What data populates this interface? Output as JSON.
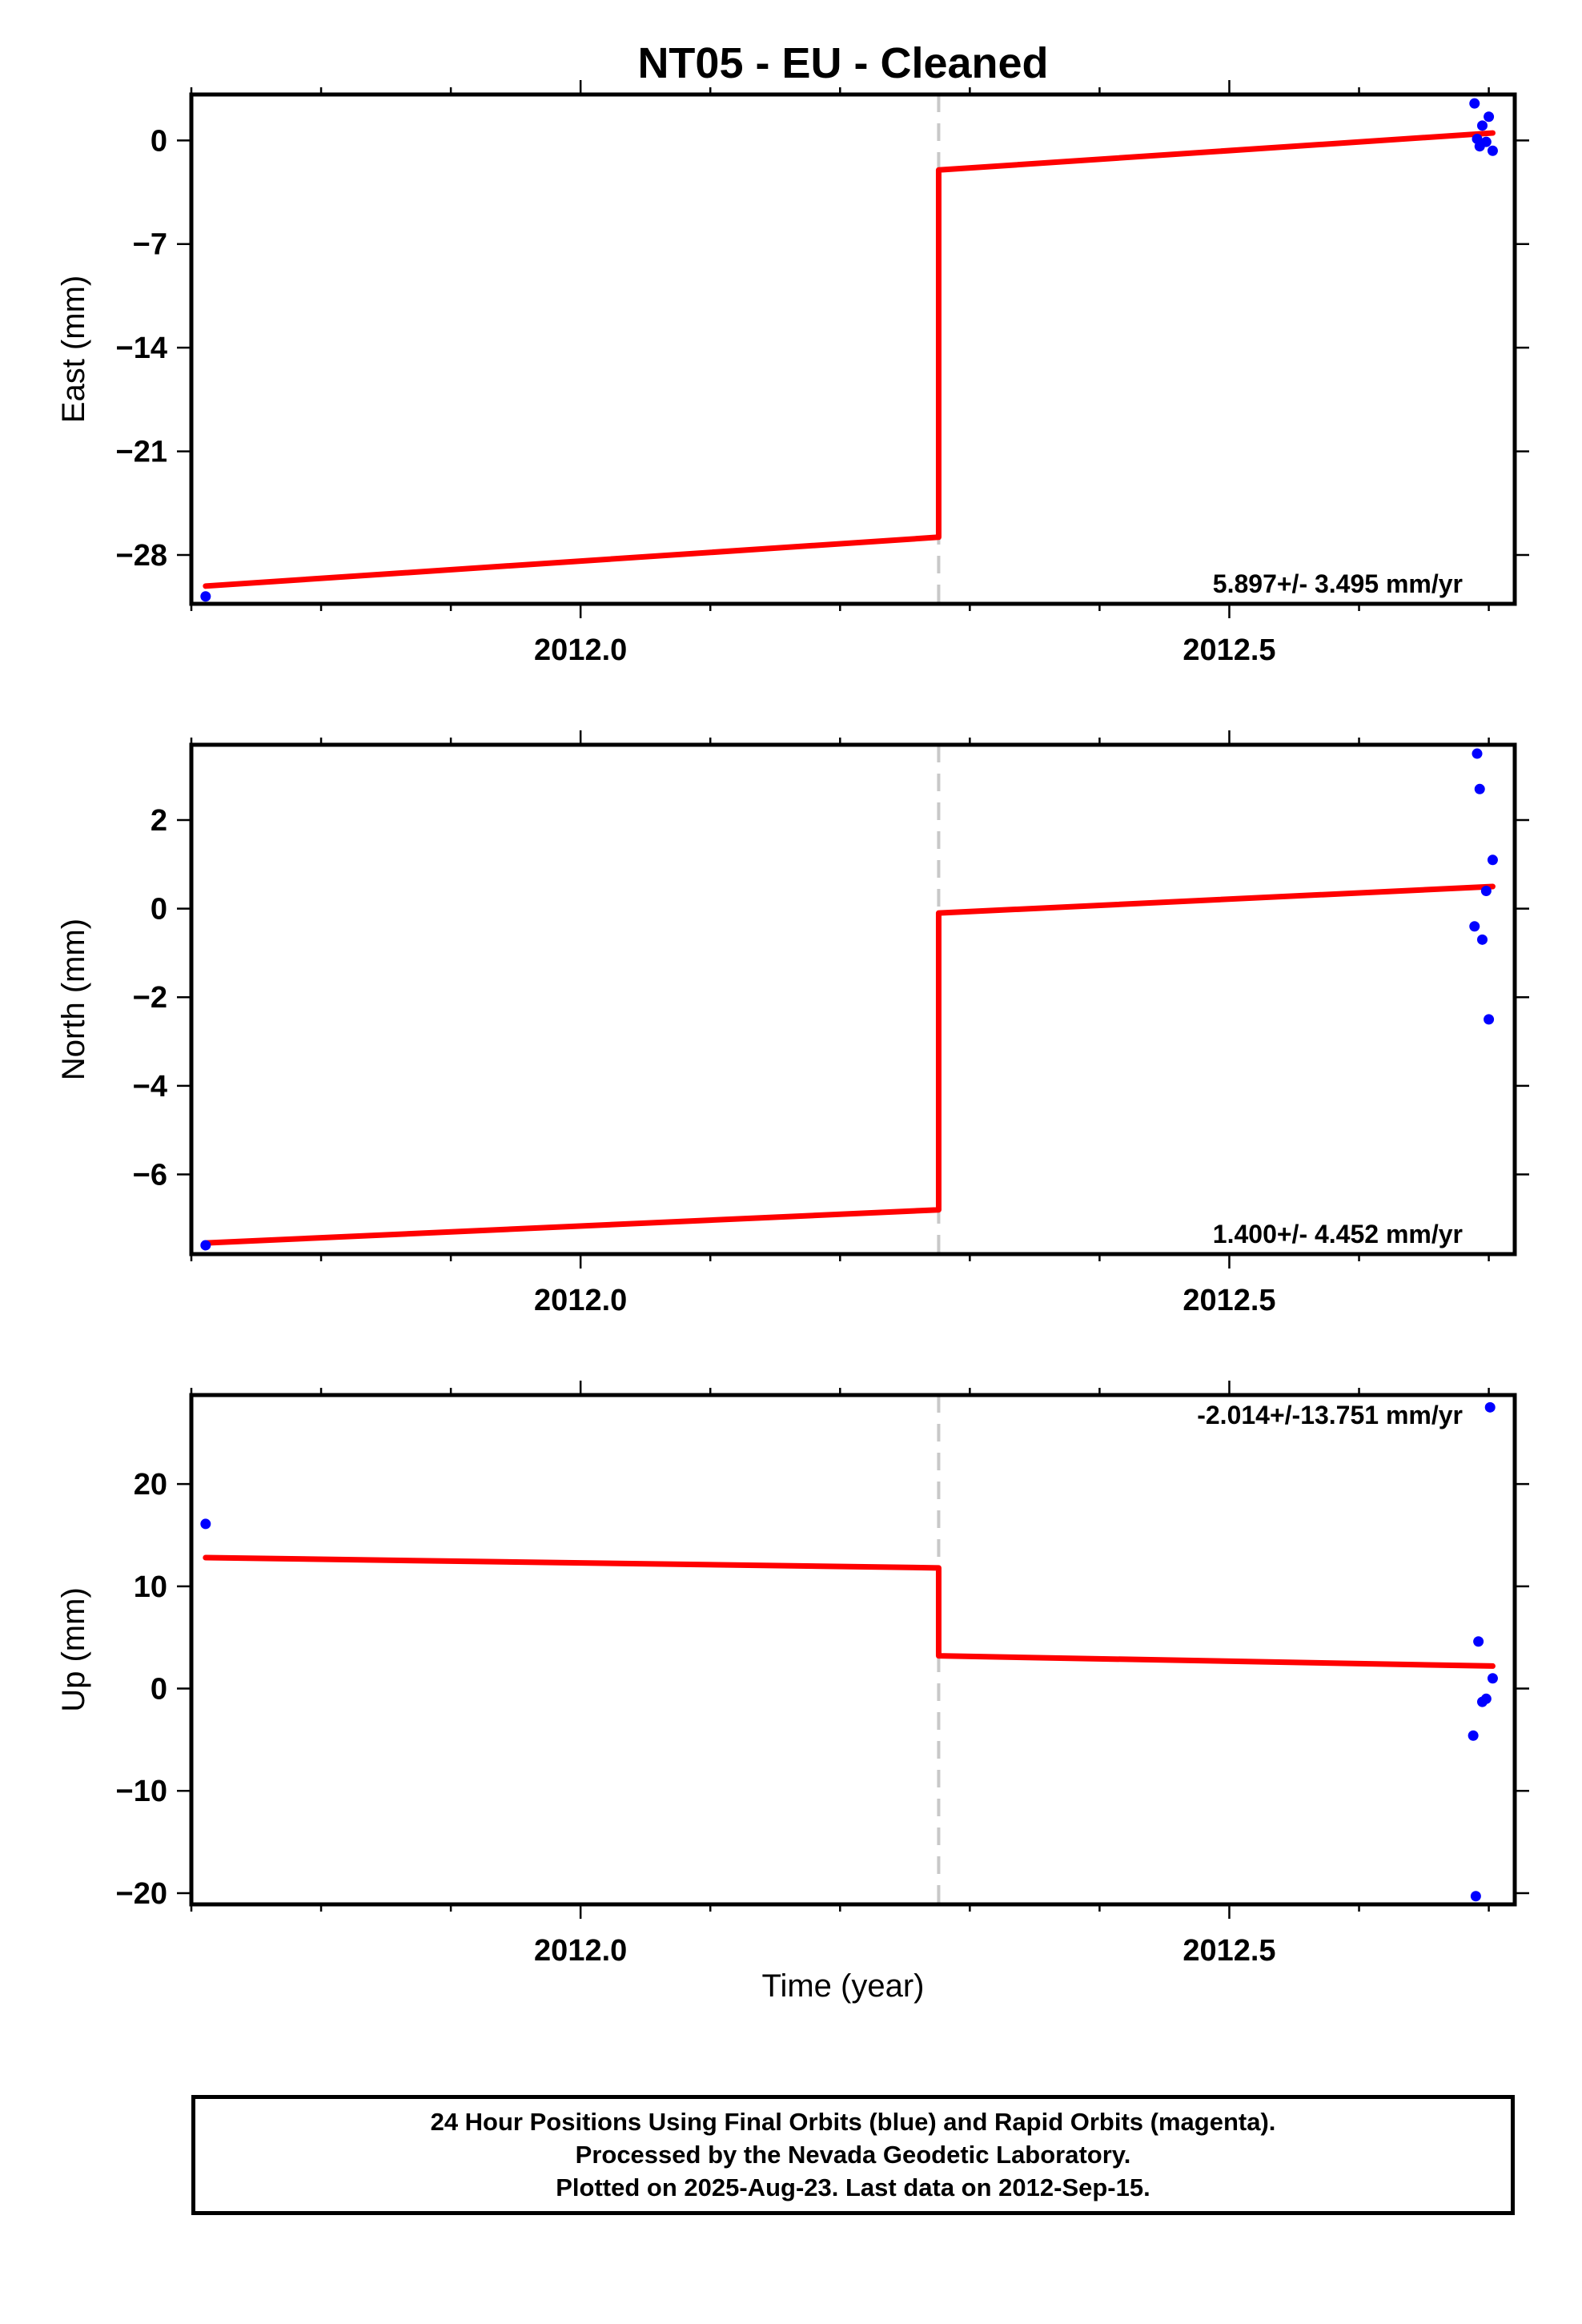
{
  "title": "NT05  - EU - Cleaned",
  "xlabel": "Time (year)",
  "colors": {
    "observations": "#0000ff",
    "model": "#ff0000",
    "event_line": "#c8c8c8",
    "axes": "#000000"
  },
  "chart_data": [
    {
      "type": "scatter",
      "ylabel": "East (mm)",
      "xlim": [
        2011.7,
        2012.72
      ],
      "ylim": [
        -31.3,
        3.1
      ],
      "x_ticks": [
        2012.0,
        2012.5
      ],
      "x_tick_labels": [
        "2012.0",
        "2012.5"
      ],
      "y_ticks": [
        0,
        -7,
        -14,
        -21,
        -28
      ],
      "y_tick_labels": [
        "0",
        "−7",
        "−14",
        "−21",
        "−28"
      ],
      "rate_label": "5.897+/- 3.495 mm/yr",
      "rate_position": "bottom-right",
      "event_line_x": 2012.276,
      "series": [
        {
          "kind": "points",
          "x": [
            2011.711,
            2012.689,
            2012.691,
            2012.693,
            2012.695,
            2012.698,
            2012.7,
            2012.703
          ],
          "y": [
            -30.8,
            2.5,
            0.1,
            -0.4,
            1.0,
            -0.1,
            1.6,
            -0.7
          ]
        },
        {
          "kind": "model",
          "segments": [
            {
              "x": [
                2011.711,
                2012.276
              ],
              "y": [
                -30.1,
                -26.8
              ]
            },
            {
              "x": [
                2012.276,
                2012.703
              ],
              "y": [
                -2.0,
                0.5
              ]
            }
          ]
        }
      ]
    },
    {
      "type": "scatter",
      "ylabel": "North (mm)",
      "xlim": [
        2011.7,
        2012.72
      ],
      "ylim": [
        -7.8,
        3.7
      ],
      "x_ticks": [
        2012.0,
        2012.5
      ],
      "x_tick_labels": [
        "2012.0",
        "2012.5"
      ],
      "y_ticks": [
        2,
        0,
        -2,
        -4,
        -6
      ],
      "y_tick_labels": [
        "2",
        "0",
        "−2",
        "−4",
        "−6"
      ],
      "rate_label": "1.400+/- 4.452 mm/yr",
      "rate_position": "bottom-right",
      "event_line_x": 2012.276,
      "series": [
        {
          "kind": "points",
          "x": [
            2011.711,
            2012.689,
            2012.691,
            2012.693,
            2012.695,
            2012.698,
            2012.7,
            2012.703
          ],
          "y": [
            -7.6,
            -0.4,
            3.5,
            2.7,
            -0.7,
            0.4,
            -2.5,
            1.1
          ]
        },
        {
          "kind": "model",
          "segments": [
            {
              "x": [
                2011.711,
                2012.276
              ],
              "y": [
                -7.55,
                -6.8
              ]
            },
            {
              "x": [
                2012.276,
                2012.703
              ],
              "y": [
                -0.1,
                0.5
              ]
            }
          ]
        }
      ]
    },
    {
      "type": "scatter",
      "ylabel": "Up (mm)",
      "xlim": [
        2011.7,
        2012.72
      ],
      "ylim": [
        -21.1,
        28.7
      ],
      "x_ticks": [
        2012.0,
        2012.5
      ],
      "x_tick_labels": [
        "2012.0",
        "2012.5"
      ],
      "y_ticks": [
        20,
        10,
        0,
        -10,
        -20
      ],
      "y_tick_labels": [
        "20",
        "10",
        "0",
        "−10",
        "−20"
      ],
      "rate_label": "-2.014+/-13.751 mm/yr",
      "rate_position": "top-right",
      "event_line_x": 2012.276,
      "series": [
        {
          "kind": "points",
          "x": [
            2011.711,
            2012.688,
            2012.69,
            2012.692,
            2012.695,
            2012.698,
            2012.701,
            2012.703
          ],
          "y": [
            16.1,
            -4.6,
            -20.3,
            4.6,
            -1.3,
            -1.0,
            27.5,
            1.0
          ]
        },
        {
          "kind": "model",
          "segments": [
            {
              "x": [
                2011.711,
                2012.276
              ],
              "y": [
                12.8,
                11.8
              ]
            },
            {
              "x": [
                2012.276,
                2012.703
              ],
              "y": [
                3.2,
                2.2
              ]
            }
          ]
        }
      ]
    }
  ],
  "footer": {
    "line1": "24 Hour Positions Using Final Orbits (blue) and Rapid Orbits (magenta).",
    "line2": "Processed by the Nevada Geodetic Laboratory.",
    "line3": "Plotted on 2025-Aug-23. Last data on 2012-Sep-15."
  }
}
